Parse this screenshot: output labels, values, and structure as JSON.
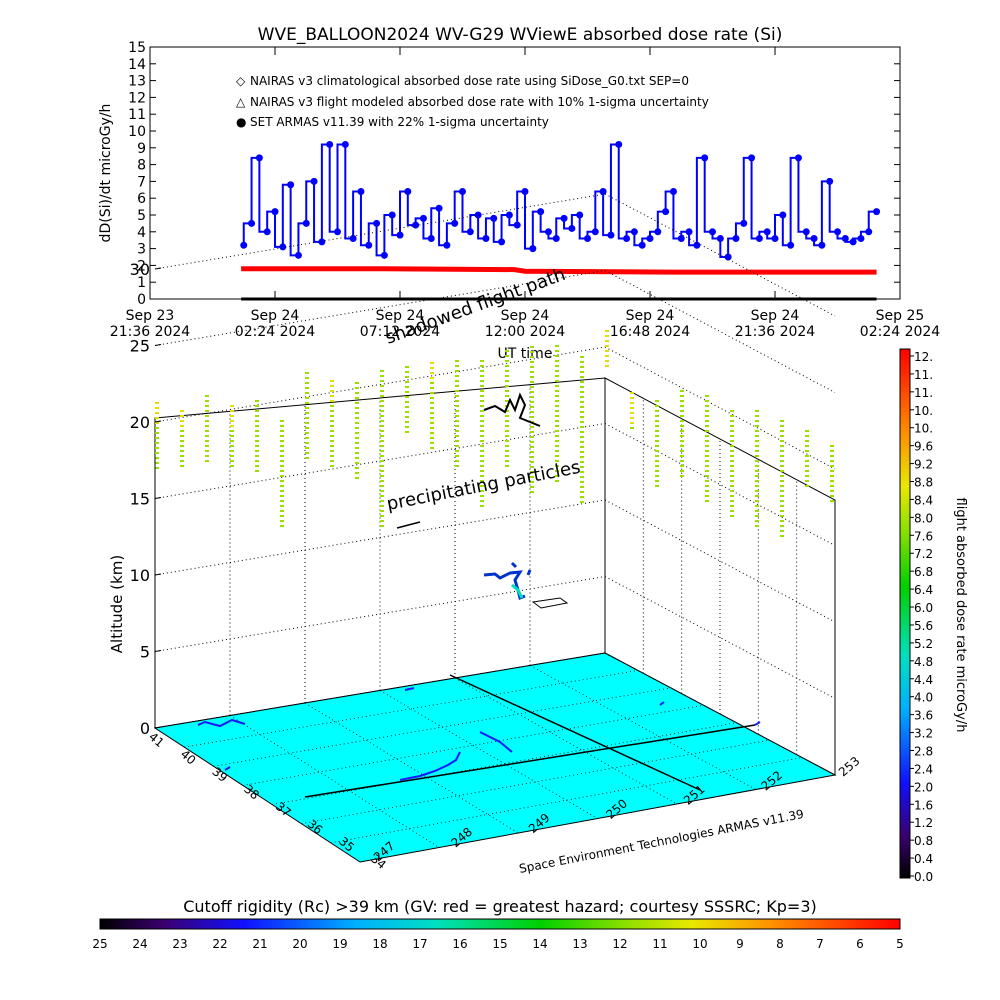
{
  "chart_data": [
    {
      "type": "line",
      "title": "WVE_BALLOON2024 WV-G29 WViewE absorbed dose rate (Si)",
      "xlabel": "UT time",
      "ylabel": "dD(Si)/dt microGy/h",
      "ylim": [
        0,
        15
      ],
      "yticks": [
        0,
        1,
        2,
        3,
        4,
        5,
        6,
        7,
        8,
        9,
        10,
        11,
        12,
        13,
        14,
        15
      ],
      "xticks": [
        {
          "date": "Sep 23",
          "time": "21:36 2024"
        },
        {
          "date": "Sep 24",
          "time": "02:24 2024"
        },
        {
          "date": "Sep 24",
          "time": "07:12 2024"
        },
        {
          "date": "Sep 24",
          "time": "12:00 2024"
        },
        {
          "date": "Sep 24",
          "time": "16:48 2024"
        },
        {
          "date": "Sep 24",
          "time": "21:36 2024"
        },
        {
          "date": "Sep 25",
          "time": "02:24 2024"
        }
      ],
      "legend": [
        {
          "symbol": "◇",
          "color": "#ff0000",
          "label": "NAIRAS v3 climatological absorbed dose rate using SiDose_G0.txt SEP=0"
        },
        {
          "symbol": "△",
          "color": "#000000",
          "label": "NAIRAS v3 flight modeled absorbed dose rate with 10% 1-sigma uncertainty"
        },
        {
          "symbol": "●",
          "color": "#0000ff",
          "label": "SET ARMAS v11.39 with 22% 1-sigma uncertainty"
        }
      ],
      "legend_position": "top-left",
      "x_hours_range": [
        0,
        28.8
      ],
      "series": [
        {
          "name": "NAIRAS v3 climatological absorbed dose rate using SiDose_G0.txt SEP=0",
          "color": "#ff0000",
          "x_hours": [
            3.5,
            9.0,
            14.0,
            14.4,
            20.0,
            26.0,
            27.9
          ],
          "values": [
            1.8,
            1.8,
            1.75,
            1.65,
            1.6,
            1.6,
            1.6
          ]
        },
        {
          "name": "NAIRAS v3 flight modeled absorbed dose rate with 10% 1-sigma uncertainty",
          "color": "#000000",
          "x_hours": [
            3.5,
            27.9
          ],
          "values": [
            0.0,
            0.0
          ]
        },
        {
          "name": "SET ARMAS v11.39 with 22% 1-sigma uncertainty",
          "color": "#0000ff",
          "x_hours": [
            3.6,
            3.9,
            4.2,
            4.5,
            4.8,
            5.1,
            5.4,
            5.7,
            6.0,
            6.3,
            6.6,
            6.9,
            7.2,
            7.5,
            7.8,
            8.1,
            8.4,
            8.7,
            9.0,
            9.3,
            9.6,
            9.9,
            10.2,
            10.5,
            10.8,
            11.1,
            11.4,
            11.7,
            12.0,
            12.3,
            12.6,
            12.9,
            13.2,
            13.5,
            13.8,
            14.1,
            14.4,
            14.7,
            15.0,
            15.3,
            15.6,
            15.9,
            16.2,
            16.5,
            16.8,
            17.1,
            17.4,
            17.7,
            18.0,
            18.3,
            18.6,
            18.9,
            19.2,
            19.5,
            19.8,
            20.1,
            20.4,
            20.7,
            21.0,
            21.3,
            21.6,
            21.9,
            22.2,
            22.5,
            22.8,
            23.1,
            23.4,
            23.7,
            24.0,
            24.3,
            24.6,
            24.9,
            25.2,
            25.5,
            25.8,
            26.1,
            26.4,
            26.7,
            27.0,
            27.3,
            27.6,
            27.9
          ],
          "values": [
            3.2,
            4.5,
            8.4,
            4.0,
            5.2,
            3.1,
            6.8,
            2.6,
            4.5,
            7.0,
            3.4,
            9.2,
            4.0,
            9.2,
            3.6,
            6.4,
            3.2,
            4.5,
            2.6,
            5.0,
            3.8,
            6.4,
            4.4,
            4.8,
            3.6,
            5.4,
            3.2,
            4.5,
            6.4,
            4.0,
            5.0,
            3.6,
            4.8,
            3.4,
            5.0,
            4.4,
            6.4,
            3.0,
            5.2,
            4.0,
            3.6,
            4.8,
            4.2,
            5.0,
            3.6,
            4.0,
            6.4,
            3.8,
            9.2,
            3.6,
            4.0,
            3.2,
            3.6,
            4.0,
            5.2,
            6.4,
            3.6,
            4.0,
            3.2,
            8.4,
            4.0,
            3.6,
            2.5,
            3.6,
            4.5,
            8.4,
            3.6,
            4.0,
            3.6,
            5.0,
            3.2,
            8.4,
            4.0,
            3.6,
            3.2,
            7.0,
            4.0,
            3.6,
            3.4,
            3.6,
            4.0,
            5.2
          ]
        }
      ]
    },
    {
      "type": "heatmap",
      "title": "",
      "zlabel": "Altitude (km)",
      "zticks": [
        0,
        5,
        10,
        15,
        20,
        25,
        30
      ],
      "lon_ticks": [
        "247",
        "248",
        "249",
        "250",
        "251",
        "252",
        "253"
      ],
      "lat_ticks": [
        "41",
        "40",
        "39",
        "38",
        "37",
        "36",
        "35",
        "34"
      ],
      "annotations": [
        "precipitating particles",
        "shadowed flight path"
      ],
      "footer_credit": "Space Environment Technologies ARMAS v11.39"
    },
    {
      "type": "heatmap",
      "title": "flight absorbed dose rate microGy/h",
      "orientation": "vertical",
      "colorbar_ticks": [
        "12.",
        "11.",
        "11.",
        "10.",
        "10.",
        "9.6",
        "9.2",
        "8.8",
        "8.4",
        "8.0",
        "7.6",
        "7.2",
        "6.8",
        "6.4",
        "6.0",
        "5.6",
        "5.2",
        "4.8",
        "4.4",
        "4.0",
        "3.6",
        "3.2",
        "2.8",
        "2.4",
        "2.0",
        "1.6",
        "1.2",
        "0.8",
        "0.4",
        "0.0"
      ]
    },
    {
      "type": "heatmap",
      "title": "Cutoff rigidity (Rc) >39 km (GV: red = greatest hazard; courtesy SSSRC; Kp=3)",
      "orientation": "horizontal",
      "colorbar_ticks": [
        "25",
        "24",
        "23",
        "22",
        "21",
        "20",
        "19",
        "18",
        "17",
        "16",
        "15",
        "14",
        "13",
        "12",
        "11",
        "10",
        "9",
        "8",
        "7",
        "6",
        "5"
      ]
    }
  ]
}
